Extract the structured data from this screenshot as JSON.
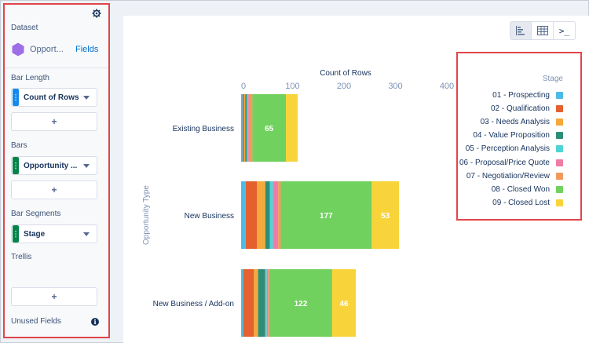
{
  "panel": {
    "dataset_label": "Dataset",
    "dataset_name": "Opport...",
    "fields_link": "Fields",
    "bar_length_label": "Bar Length",
    "bar_length_field": "Count of Rows",
    "bars_label": "Bars",
    "bars_field": "Opportunity ...",
    "bar_segments_label": "Bar Segments",
    "bar_segments_field": "Stage",
    "trellis_label": "Trellis",
    "add_label": "+",
    "unused_label": "Unused Fields",
    "info_glyph": "i",
    "colors": {
      "measure": "#1589ee",
      "dimension": "#04844b",
      "dataset_icon": "#9e6ee6"
    }
  },
  "toolbar": {
    "icons": [
      "bar-chart-icon",
      "table-icon",
      "query-console-icon"
    ],
    "active": 0,
    "console_glyph": ">_"
  },
  "chart_data": {
    "type": "bar",
    "orientation": "horizontal",
    "stacked": true,
    "title": "Count of Rows",
    "xlabel": "Count of Rows",
    "ylabel": "Opportunity Type",
    "xlim": [
      0,
      400
    ],
    "xticks": [
      0,
      100,
      200,
      300,
      400
    ],
    "categories": [
      "Existing Business",
      "New Business",
      "New Business / Add-on"
    ],
    "legend_title": "Stage",
    "legend_position": "top-right",
    "series": [
      {
        "name": "01 - Prospecting",
        "color": "#4bbce6",
        "values": [
          3,
          9,
          4
        ]
      },
      {
        "name": "02 - Qualification",
        "color": "#e4602e",
        "values": [
          3,
          22,
          21
        ]
      },
      {
        "name": "03 - Needs Analysis",
        "color": "#f4a93b",
        "values": [
          2,
          16,
          8
        ]
      },
      {
        "name": "04 - Value Proposition",
        "color": "#2e8d76",
        "values": [
          3,
          9,
          14
        ]
      },
      {
        "name": "05 - Perception Analysis",
        "color": "#4fd4d4",
        "values": [
          2,
          6,
          3
        ]
      },
      {
        "name": "06 - Proposal/Price Quote",
        "color": "#f07ca6",
        "values": [
          2,
          10,
          3
        ]
      },
      {
        "name": "07 - Negotiation/Review",
        "color": "#f09a5e",
        "values": [
          7,
          5,
          2
        ]
      },
      {
        "name": "08 - Closed Won",
        "color": "#71d15f",
        "values": [
          65,
          177,
          122
        ]
      },
      {
        "name": "09 - Closed Lost",
        "color": "#f8d43a",
        "values": [
          23,
          53,
          46
        ]
      }
    ],
    "data_labels": [
      {
        "category": "Existing Business",
        "series": "08 - Closed Won",
        "text": "65"
      },
      {
        "category": "New Business",
        "series": "08 - Closed Won",
        "text": "177"
      },
      {
        "category": "New Business",
        "series": "09 - Closed Lost",
        "text": "53"
      },
      {
        "category": "New Business / Add-on",
        "series": "08 - Closed Won",
        "text": "122"
      },
      {
        "category": "New Business / Add-on",
        "series": "09 - Closed Lost",
        "text": "46"
      }
    ],
    "grid": false
  }
}
